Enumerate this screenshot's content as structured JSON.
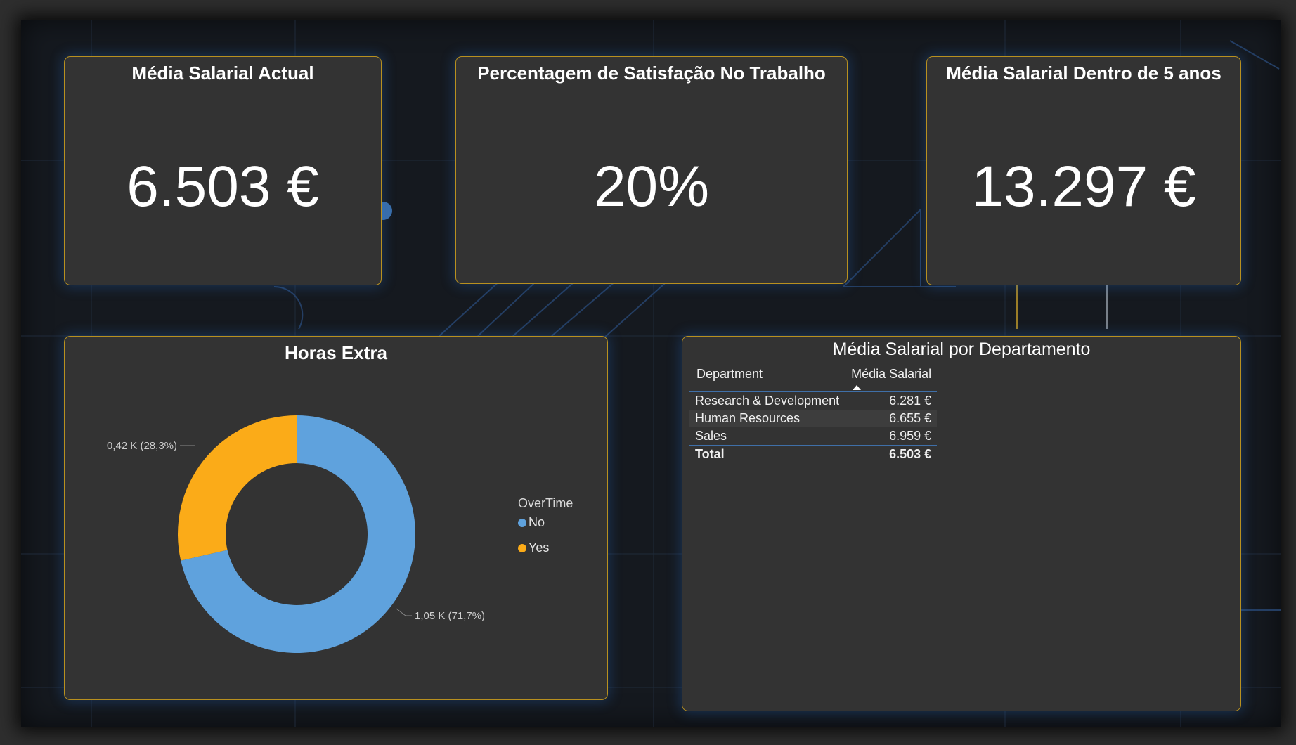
{
  "kpis": [
    {
      "title": "Média Salarial Actual",
      "value": "6.503 €"
    },
    {
      "title": "Percentagem de Satisfação No Trabalho",
      "value": "20%"
    },
    {
      "title": "Média Salarial Dentro de 5 anos",
      "value": "13.297 €"
    }
  ],
  "overtime": {
    "title": "Horas Extra",
    "legend_title": "OverTime",
    "labels": {
      "yes": "0,42 K (28,3%)",
      "no": "1,05 K (71,7%)"
    },
    "colors": {
      "no": "#5fa2dd",
      "yes": "#fbab18"
    },
    "chart_data": {
      "type": "pie",
      "variant": "donut",
      "categories": [
        "No",
        "Yes"
      ],
      "values": [
        1050,
        420
      ],
      "percentages": [
        71.7,
        28.3
      ],
      "legend_title": "OverTime",
      "legend_position": "right"
    }
  },
  "department": {
    "title": "Média Salarial por Departamento",
    "headers": {
      "department": "Department",
      "salary": "Média Salarial"
    },
    "rows": [
      {
        "department": "Research & Development",
        "salary": "6.281 €"
      },
      {
        "department": "Human Resources",
        "salary": "6.655 €"
      },
      {
        "department": "Sales",
        "salary": "6.959 €"
      }
    ],
    "total": {
      "label": "Total",
      "salary": "6.503 €"
    }
  }
}
